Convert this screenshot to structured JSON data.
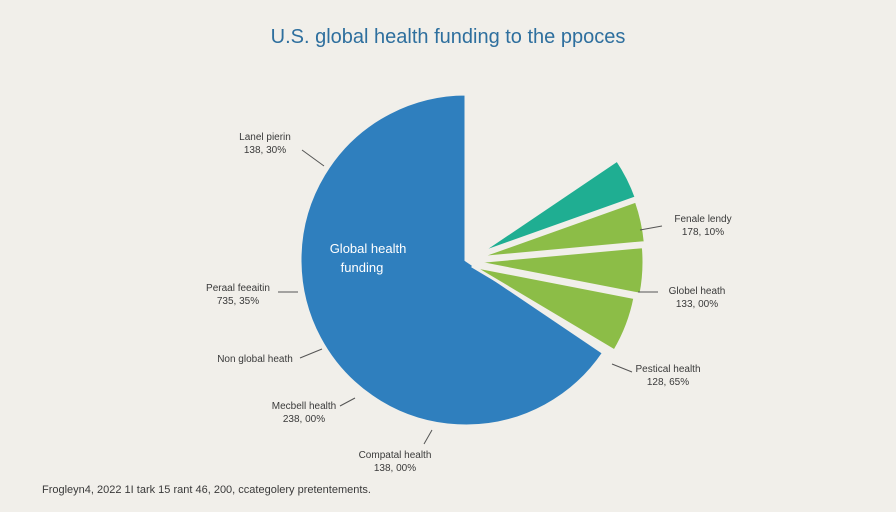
{
  "chart_data": {
    "type": "pie",
    "title": "U.S. global health funding to the ppoces",
    "center_label_line1": "Global health",
    "center_label_line2": "funding",
    "colors": {
      "blue": "#2f7fbe",
      "teal": "#1fae92",
      "green": "#8cbd47",
      "leader": "#555555"
    },
    "slices": [
      {
        "key": "blue",
        "color": "blue",
        "value": 82.0
      },
      {
        "key": "teal",
        "color": "teal",
        "value": 4.0
      },
      {
        "key": "green1",
        "color": "green",
        "value": 4.0
      },
      {
        "key": "green2",
        "color": "green",
        "value": 4.5
      },
      {
        "key": "green3",
        "color": "green",
        "value": 5.5
      }
    ],
    "labels": [
      {
        "key": "lanel",
        "line1": "Lanel pierin",
        "line2": "138, 30%"
      },
      {
        "key": "peraal",
        "line1": "Peraal feeaitin",
        "line2": "735, 35%"
      },
      {
        "key": "nonglobal",
        "line1": "Non global heath",
        "line2": ""
      },
      {
        "key": "mecbell",
        "line1": "Mecbell health",
        "line2": "238, 00%"
      },
      {
        "key": "compatal",
        "line1": "Compatal health",
        "line2": "138, 00%"
      },
      {
        "key": "fenale",
        "line1": "Fenale lendy",
        "line2": "178, 10%"
      },
      {
        "key": "globel",
        "line1": "Globel heath",
        "line2": "133, 00%"
      },
      {
        "key": "pestical",
        "line1": "Pestical health",
        "line2": "128, 65%"
      }
    ],
    "footnote": "Frogleyn4, 2022 1I tark 15 rant 46, 200, ccategolery pretentements."
  }
}
